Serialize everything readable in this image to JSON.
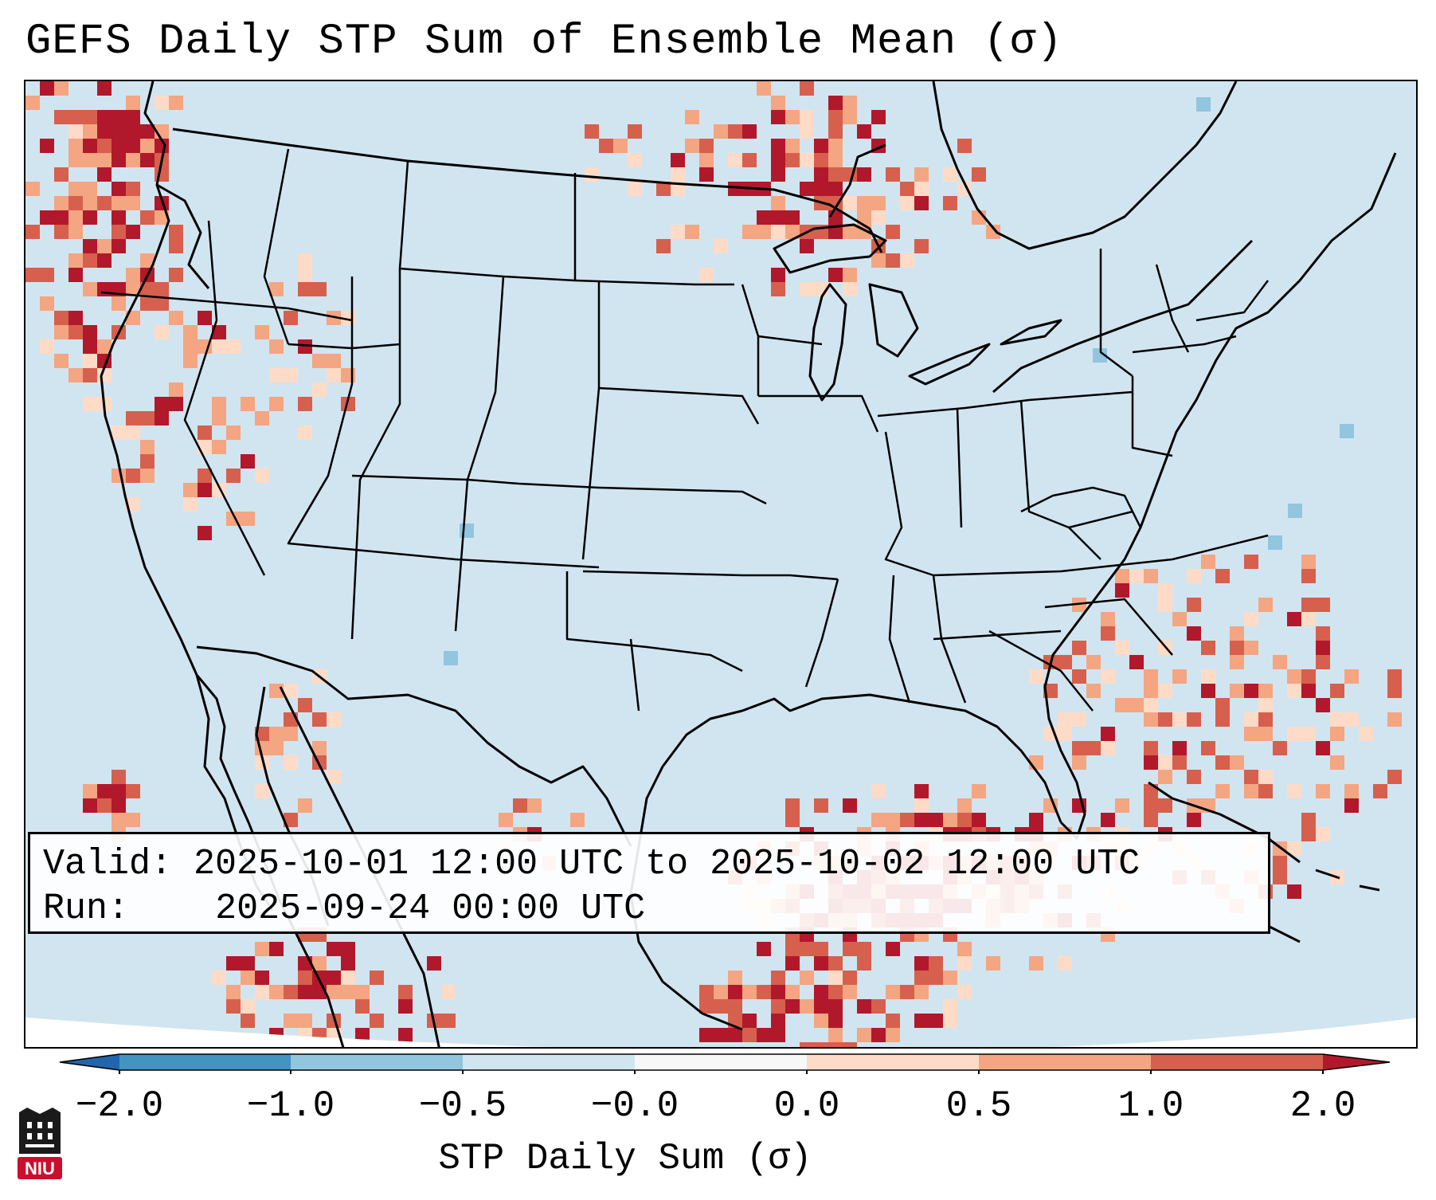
{
  "title": "GEFS Daily STP Sum of Ensemble Mean (σ)",
  "info": {
    "valid_label": "Valid:",
    "valid_value": "2025-10-01 12:00 UTC to 2025-10-02 12:00 UTC",
    "run_label": "Run:",
    "run_value": "2025-09-24 00:00 UTC"
  },
  "colorbar": {
    "title": "STP Daily Sum (σ)",
    "ticks": [
      "−2.0",
      "−1.0",
      "−0.5",
      "−0.0",
      "0.0",
      "0.5",
      "1.0",
      "2.0"
    ],
    "bins": [
      {
        "range": "<-2.0",
        "color": "#2166ac"
      },
      {
        "range": "-2.0 to -1.0",
        "color": "#4393c3"
      },
      {
        "range": "-1.0 to -0.5",
        "color": "#92c5de"
      },
      {
        "range": "-0.5 to -0.0",
        "color": "#d1e5f0"
      },
      {
        "range": "-0.0 to 0.0",
        "color": "#f7f7f7"
      },
      {
        "range": "0.0 to 0.5",
        "color": "#fddbc7"
      },
      {
        "range": "0.5 to 1.0",
        "color": "#f4a582"
      },
      {
        "range": "1.0 to 2.0",
        "color": "#d6604d"
      },
      {
        "range": ">2.0",
        "color": "#b2182b"
      }
    ]
  },
  "map": {
    "background_value_color": "#d1e5f0",
    "outside_domain_color": "#ffffff",
    "boundary_color": "#000000"
  },
  "logo": {
    "text": "NIU",
    "color": "#c8102e"
  }
}
